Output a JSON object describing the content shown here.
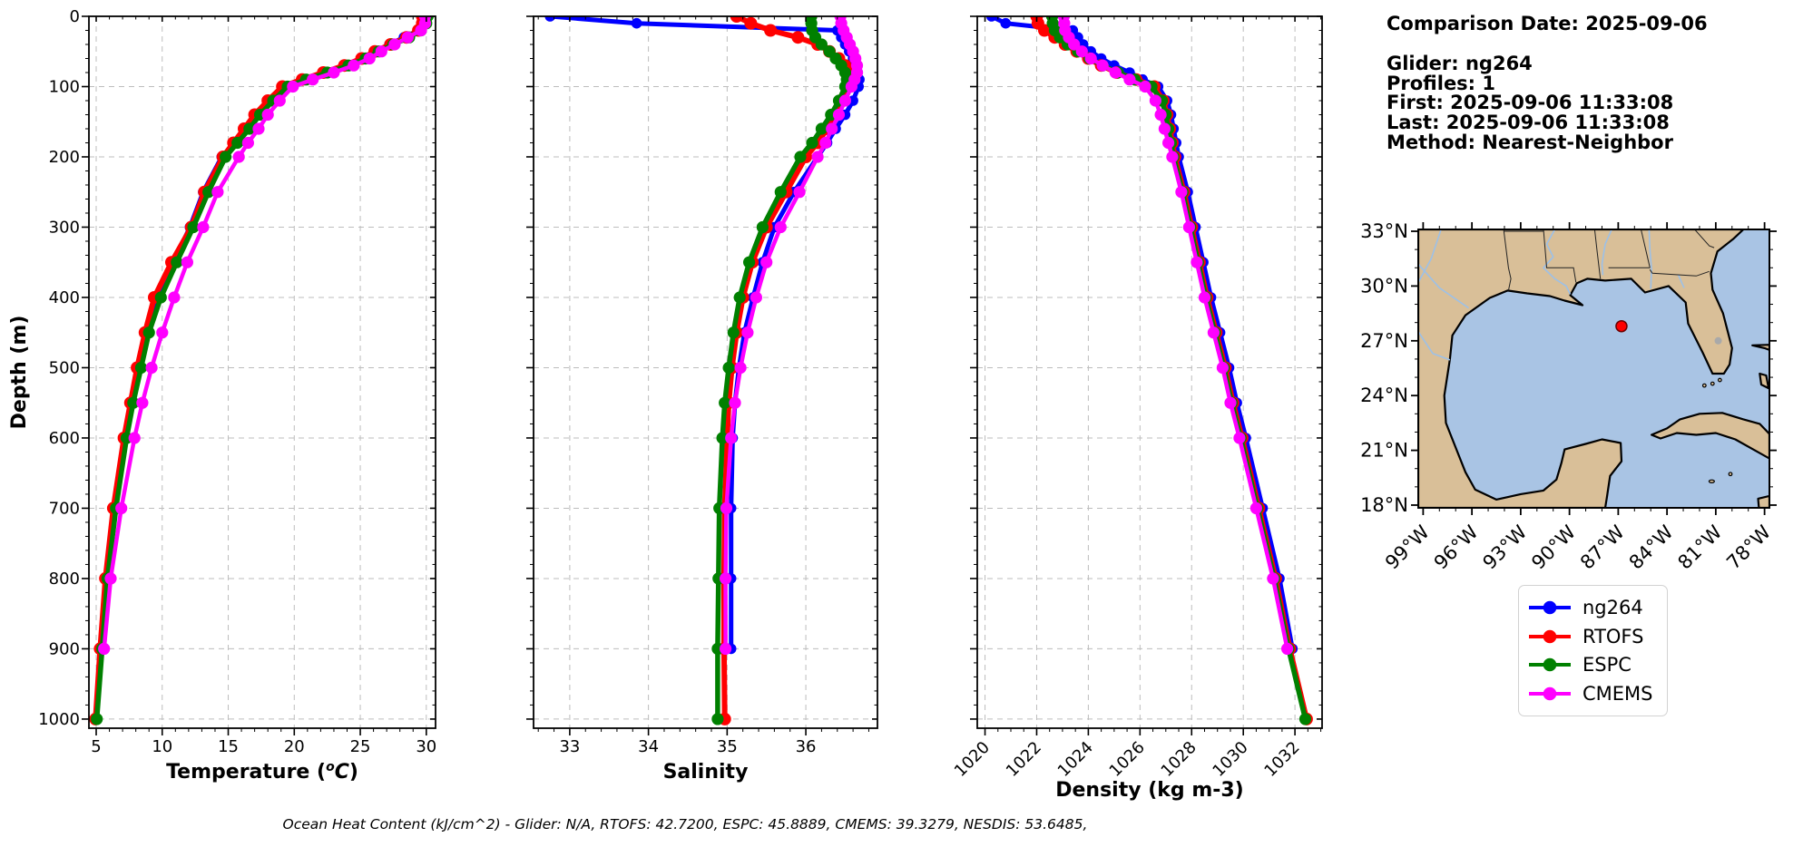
{
  "info_panel": {
    "comparison_date": "Comparison Date: 2025-09-06",
    "lines": [
      "Glider: ng264",
      "Profiles: 1",
      "First: 2025-09-06 11:33:08",
      "Last: 2025-09-06 11:33:08",
      "Method: Nearest-Neighbor"
    ]
  },
  "footer": {
    "ohc_text": "Ocean Heat Content (kJ/cm^2) - Glider: N/A,  RTOFS: 42.7200,  ESPC: 45.8889,  CMEMS: 39.3279,  NESDIS: 53.6485,"
  },
  "legend": {
    "items": [
      {
        "label": "ng264",
        "color": "#0000ff"
      },
      {
        "label": "RTOFS",
        "color": "#ff0000"
      },
      {
        "label": "ESPC",
        "color": "#008000"
      },
      {
        "label": "CMEMS",
        "color": "#ff00ff"
      }
    ]
  },
  "map": {
    "lat_ticks": [
      "33°N",
      "30°N",
      "27°N",
      "24°N",
      "21°N",
      "18°N"
    ],
    "lat_values": [
      33,
      30,
      27,
      24,
      21,
      18
    ],
    "lon_ticks": [
      "99°W",
      "96°W",
      "93°W",
      "90°W",
      "87°W",
      "84°W",
      "81°W",
      "78°W"
    ],
    "lon_values": [
      -99,
      -96,
      -93,
      -90,
      -87,
      -84,
      -81,
      -78
    ],
    "extent": {
      "lon_min": -99.3,
      "lon_max": -77.7,
      "lat_min": 17.85,
      "lat_max": 33.1
    },
    "marker": {
      "lon": -86.8,
      "lat": 27.8,
      "color": "#ff0000"
    },
    "land_color": "#d9bf98",
    "water_color": "#a9c4e4"
  },
  "chart_data": [
    {
      "type": "line",
      "name": "temperature",
      "xlabel": "Temperature (°C)",
      "ylabel": "Depth (m)",
      "xlim": [
        4.45,
        30.7
      ],
      "ylim": [
        0,
        1013
      ],
      "xticks": [
        5,
        10,
        15,
        20,
        25,
        30
      ],
      "yticks": [
        0,
        100,
        200,
        300,
        400,
        500,
        600,
        700,
        800,
        900,
        1000
      ],
      "x_minor": 1,
      "rotate_xtick_labels": false,
      "series": [
        {
          "name": "ng264",
          "color": "#0000ff",
          "depths": [
            0,
            10,
            20,
            30,
            40,
            50,
            60,
            70,
            80,
            90,
            100,
            120,
            140,
            160,
            180,
            200,
            250,
            300,
            350,
            400,
            450,
            500,
            550,
            600,
            700,
            800,
            900
          ],
          "values": [
            30.0,
            29.9,
            29.4,
            28.3,
            27.2,
            26.2,
            25.2,
            23.9,
            22.3,
            20.8,
            19.3,
            18.2,
            17.2,
            16.4,
            15.5,
            14.5,
            13.1,
            12.1,
            10.85,
            9.55,
            8.8,
            8.2,
            7.7,
            7.2,
            6.4,
            5.8,
            5.35
          ]
        },
        {
          "name": "RTOFS",
          "color": "#ff0000",
          "depths": [
            0,
            10,
            20,
            30,
            40,
            50,
            60,
            70,
            80,
            90,
            100,
            120,
            140,
            160,
            180,
            200,
            250,
            300,
            350,
            400,
            450,
            500,
            550,
            600,
            700,
            800,
            900,
            1000
          ],
          "values": [
            29.7,
            29.7,
            29.4,
            28.5,
            27.3,
            26.1,
            25.1,
            23.8,
            22.2,
            20.6,
            19.1,
            18.0,
            17.0,
            16.2,
            15.4,
            14.6,
            13.2,
            12.2,
            10.7,
            9.4,
            8.7,
            8.1,
            7.6,
            7.1,
            6.3,
            5.7,
            5.3,
            4.95
          ]
        },
        {
          "name": "ESPC",
          "color": "#008000",
          "depths": [
            0,
            10,
            20,
            30,
            40,
            50,
            60,
            70,
            80,
            90,
            100,
            120,
            140,
            160,
            180,
            200,
            250,
            300,
            350,
            400,
            450,
            500,
            550,
            600,
            700,
            800,
            900,
            1000
          ],
          "values": [
            30.1,
            30.0,
            29.6,
            28.7,
            27.5,
            26.4,
            25.4,
            24.1,
            22.5,
            20.9,
            19.5,
            18.4,
            17.4,
            16.6,
            15.7,
            14.8,
            13.5,
            12.35,
            11.1,
            9.9,
            9.0,
            8.4,
            7.8,
            7.3,
            6.5,
            5.85,
            5.45,
            5.05
          ]
        },
        {
          "name": "CMEMS",
          "color": "#ff00ff",
          "depths": [
            0,
            10,
            20,
            30,
            40,
            50,
            60,
            70,
            80,
            90,
            100,
            120,
            140,
            160,
            180,
            200,
            250,
            300,
            350,
            400,
            450,
            500,
            550,
            600,
            700,
            800,
            900
          ],
          "values": [
            29.9,
            29.9,
            29.6,
            28.6,
            27.6,
            26.6,
            25.7,
            24.5,
            23.0,
            21.4,
            19.9,
            18.9,
            18.0,
            17.3,
            16.5,
            15.8,
            14.2,
            13.1,
            11.9,
            10.9,
            10.0,
            9.2,
            8.5,
            7.9,
            6.9,
            6.1,
            5.6
          ]
        }
      ]
    },
    {
      "type": "line",
      "name": "salinity",
      "xlabel": "Salinity",
      "ylabel": "",
      "xlim": [
        32.54,
        36.91
      ],
      "ylim": [
        0,
        1013
      ],
      "xticks": [
        33,
        34,
        35,
        36
      ],
      "yticks": [
        0,
        100,
        200,
        300,
        400,
        500,
        600,
        700,
        800,
        900,
        1000
      ],
      "x_minor": 0.2,
      "rotate_xtick_labels": false,
      "series": [
        {
          "name": "ng264",
          "color": "#0000ff",
          "depths": [
            0,
            10,
            20,
            30,
            40,
            50,
            60,
            70,
            80,
            90,
            100,
            120,
            140,
            160,
            180,
            200,
            250,
            300,
            350,
            400,
            450,
            500,
            550,
            600,
            700,
            800,
            900
          ],
          "values": [
            32.75,
            33.85,
            36.4,
            36.45,
            36.5,
            36.55,
            36.6,
            36.64,
            36.66,
            36.68,
            36.67,
            36.6,
            36.5,
            36.38,
            36.27,
            36.15,
            35.85,
            35.6,
            35.45,
            35.33,
            35.22,
            35.15,
            35.1,
            35.07,
            35.05,
            35.05,
            35.05
          ]
        },
        {
          "name": "RTOFS",
          "color": "#ff0000",
          "depths": [
            0,
            10,
            20,
            30,
            40,
            50,
            60,
            70,
            80,
            90,
            100,
            120,
            140,
            160,
            180,
            200,
            250,
            300,
            350,
            400,
            450,
            500,
            550,
            600,
            700,
            800,
            900,
            1000
          ],
          "values": [
            35.12,
            35.3,
            35.55,
            35.9,
            36.15,
            36.3,
            36.42,
            36.5,
            36.55,
            36.57,
            36.55,
            36.45,
            36.37,
            36.27,
            36.15,
            36.0,
            35.75,
            35.5,
            35.32,
            35.2,
            35.12,
            35.06,
            35.02,
            35.0,
            34.97,
            34.96,
            34.96,
            34.97
          ]
        },
        {
          "name": "ESPC",
          "color": "#008000",
          "depths": [
            0,
            10,
            20,
            30,
            40,
            50,
            60,
            70,
            80,
            90,
            100,
            120,
            140,
            160,
            180,
            200,
            250,
            300,
            350,
            400,
            450,
            500,
            550,
            600,
            700,
            800,
            900,
            1000
          ],
          "values": [
            36.07,
            36.07,
            36.08,
            36.12,
            36.2,
            36.3,
            36.38,
            36.45,
            36.5,
            36.52,
            36.5,
            36.42,
            36.32,
            36.2,
            36.08,
            35.93,
            35.68,
            35.45,
            35.28,
            35.16,
            35.08,
            35.02,
            34.97,
            34.94,
            34.9,
            34.89,
            34.88,
            34.88
          ]
        },
        {
          "name": "CMEMS",
          "color": "#ff00ff",
          "depths": [
            0,
            10,
            20,
            30,
            40,
            50,
            60,
            70,
            80,
            90,
            100,
            120,
            140,
            160,
            180,
            200,
            250,
            300,
            350,
            400,
            450,
            500,
            550,
            600,
            700,
            800,
            900
          ],
          "values": [
            36.44,
            36.45,
            36.48,
            36.52,
            36.56,
            36.6,
            36.63,
            36.65,
            36.65,
            36.62,
            36.58,
            36.5,
            36.42,
            36.33,
            36.25,
            36.15,
            35.92,
            35.68,
            35.5,
            35.37,
            35.26,
            35.17,
            35.1,
            35.05,
            34.99,
            34.98,
            34.98
          ]
        }
      ]
    },
    {
      "type": "line",
      "name": "density",
      "xlabel": "Density (kg m-3)",
      "ylabel": "",
      "xlim": [
        1019.7,
        1033.05
      ],
      "ylim": [
        0,
        1013
      ],
      "xticks": [
        1020,
        1022,
        1024,
        1026,
        1028,
        1030,
        1032
      ],
      "yticks": [
        0,
        100,
        200,
        300,
        400,
        500,
        600,
        700,
        800,
        900,
        1000
      ],
      "x_minor": 0.5,
      "rotate_xtick_labels": true,
      "series": [
        {
          "name": "ng264",
          "color": "#0000ff",
          "depths": [
            0,
            10,
            20,
            30,
            40,
            50,
            60,
            70,
            80,
            90,
            100,
            120,
            140,
            160,
            180,
            200,
            250,
            300,
            350,
            400,
            450,
            500,
            550,
            600,
            700,
            800,
            900
          ],
          "values": [
            1020.25,
            1020.8,
            1023.4,
            1023.6,
            1023.8,
            1024.1,
            1024.5,
            1025.0,
            1025.6,
            1026.1,
            1026.7,
            1027.05,
            1027.2,
            1027.3,
            1027.4,
            1027.5,
            1027.85,
            1028.15,
            1028.45,
            1028.75,
            1029.1,
            1029.45,
            1029.75,
            1030.1,
            1030.75,
            1031.4,
            1031.9
          ]
        },
        {
          "name": "RTOFS",
          "color": "#ff0000",
          "depths": [
            0,
            10,
            20,
            30,
            40,
            50,
            60,
            70,
            80,
            90,
            100,
            120,
            140,
            160,
            180,
            200,
            250,
            300,
            350,
            400,
            450,
            500,
            550,
            600,
            700,
            800,
            900,
            1000
          ],
          "values": [
            1022.0,
            1022.05,
            1022.3,
            1022.7,
            1023.1,
            1023.55,
            1024.0,
            1024.5,
            1025.1,
            1025.85,
            1026.55,
            1026.9,
            1027.05,
            1027.15,
            1027.25,
            1027.35,
            1027.7,
            1028.0,
            1028.3,
            1028.6,
            1028.95,
            1029.3,
            1029.6,
            1029.95,
            1030.6,
            1031.25,
            1031.8,
            1032.45
          ]
        },
        {
          "name": "ESPC",
          "color": "#008000",
          "depths": [
            0,
            10,
            20,
            30,
            40,
            50,
            60,
            70,
            80,
            90,
            100,
            120,
            140,
            160,
            180,
            200,
            250,
            300,
            350,
            400,
            450,
            500,
            550,
            600,
            700,
            800,
            900,
            1000
          ],
          "values": [
            1022.6,
            1022.62,
            1022.7,
            1022.9,
            1023.2,
            1023.6,
            1024.05,
            1024.55,
            1025.15,
            1025.8,
            1026.45,
            1026.85,
            1027.0,
            1027.1,
            1027.2,
            1027.3,
            1027.65,
            1027.95,
            1028.25,
            1028.55,
            1028.9,
            1029.25,
            1029.55,
            1029.9,
            1030.55,
            1031.2,
            1031.75,
            1032.4
          ]
        },
        {
          "name": "CMEMS",
          "color": "#ff00ff",
          "depths": [
            0,
            10,
            20,
            30,
            40,
            50,
            60,
            70,
            80,
            90,
            100,
            120,
            140,
            160,
            180,
            200,
            250,
            300,
            350,
            400,
            450,
            500,
            550,
            600,
            700,
            800,
            900
          ],
          "values": [
            1023.05,
            1023.07,
            1023.1,
            1023.25,
            1023.45,
            1023.75,
            1024.1,
            1024.55,
            1025.05,
            1025.6,
            1026.2,
            1026.6,
            1026.8,
            1026.95,
            1027.1,
            1027.25,
            1027.6,
            1027.9,
            1028.2,
            1028.5,
            1028.85,
            1029.2,
            1029.5,
            1029.85,
            1030.5,
            1031.15,
            1031.7
          ]
        }
      ]
    }
  ]
}
